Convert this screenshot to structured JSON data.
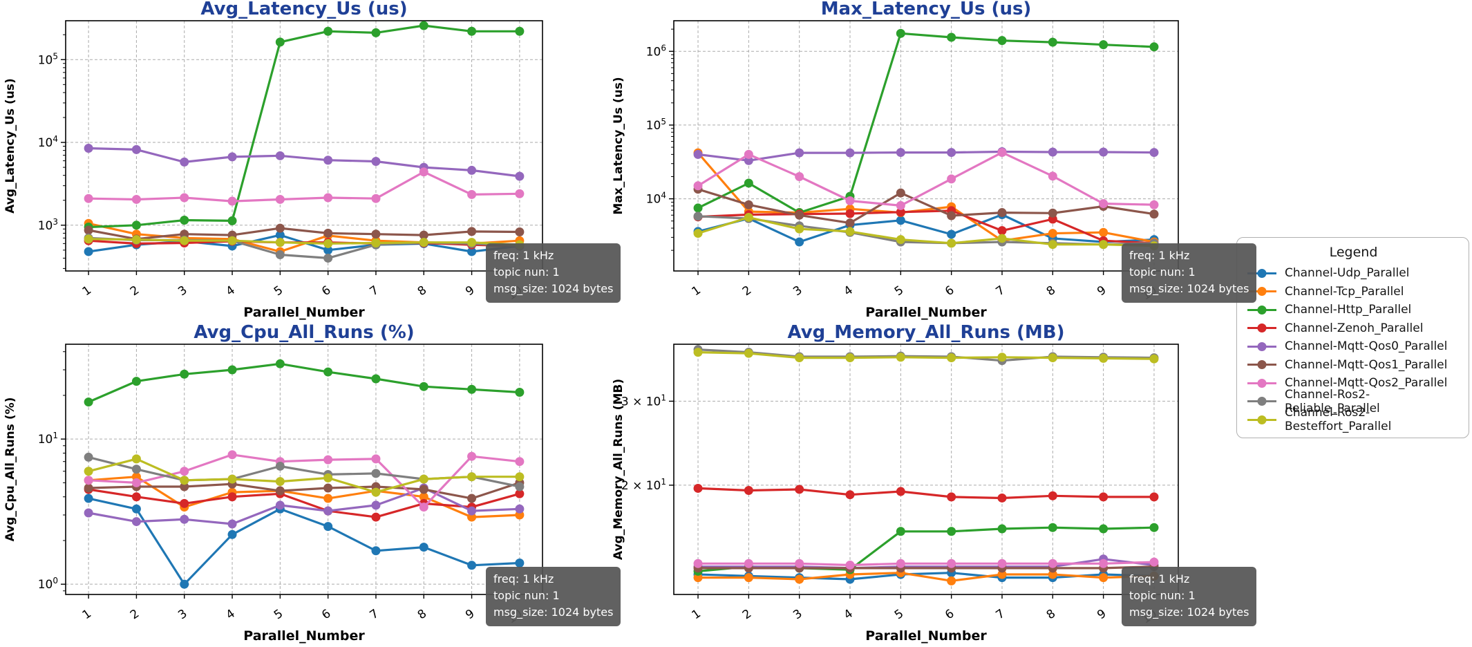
{
  "figure": {
    "background": "#ffffff",
    "title_color": "#1f4096",
    "axis_color": "#000000",
    "grid_color": "#aaaaaa",
    "annotation": {
      "line1": "freq: 1 kHz",
      "line2": "topic nun: 1",
      "line3": "msg_size: 1024 bytes",
      "bg_color": "#555555",
      "text_color": "#ffffff"
    }
  },
  "legend": {
    "title": "Legend",
    "items": [
      {
        "label": "Channel-Udp_Parallel",
        "color": "#1f77b4"
      },
      {
        "label": "Channel-Tcp_Parallel",
        "color": "#ff7f0e"
      },
      {
        "label": "Channel-Http_Parallel",
        "color": "#2ca02c"
      },
      {
        "label": "Channel-Zenoh_Parallel",
        "color": "#d62728"
      },
      {
        "label": "Channel-Mqtt-Qos0_Parallel",
        "color": "#9467bd"
      },
      {
        "label": "Channel-Mqtt-Qos1_Parallel",
        "color": "#8c564b"
      },
      {
        "label": "Channel-Mqtt-Qos2_Parallel",
        "color": "#e377c2"
      },
      {
        "label": "Channel-Ros2-Reliable_Parallel",
        "color": "#7f7f7f"
      },
      {
        "label": "Channel-Ros2-Besteffort_Parallel",
        "color": "#bcbd22"
      }
    ]
  },
  "chart_data": [
    {
      "type": "line",
      "title": "Avg_Latency_Us  (us)",
      "ylabel": "Avg_Latency_Us (us)",
      "xlabel": "Parallel_Number",
      "log_y": true,
      "grid": true,
      "legend_position": "outside-right",
      "x": [
        1,
        2,
        3,
        4,
        5,
        6,
        7,
        8,
        9,
        10
      ],
      "ylim": [
        280,
        295000
      ],
      "yticks": [
        {
          "value": 1000,
          "base": "",
          "exp": "3"
        },
        {
          "value": 10000,
          "base": "",
          "exp": "4"
        },
        {
          "value": 100000,
          "base": "",
          "exp": "5"
        }
      ],
      "series": [
        {
          "name": "Channel-Udp_Parallel",
          "color": "#1f77b4",
          "values": [
            480,
            580,
            640,
            560,
            760,
            500,
            580,
            600,
            480,
            560
          ]
        },
        {
          "name": "Channel-Tcp_Parallel",
          "color": "#ff7f0e",
          "values": [
            1050,
            780,
            700,
            680,
            480,
            750,
            650,
            620,
            600,
            650
          ]
        },
        {
          "name": "Channel-Http_Parallel",
          "color": "#2ca02c",
          "values": [
            950,
            1000,
            1150,
            1130,
            163000,
            220000,
            211000,
            258000,
            220000,
            220000
          ]
        },
        {
          "name": "Channel-Zenoh_Parallel",
          "color": "#d62728",
          "values": [
            650,
            600,
            610,
            640,
            620,
            620,
            600,
            610,
            580,
            560
          ]
        },
        {
          "name": "Channel-Mqtt-Qos0_Parallel",
          "color": "#9467bd",
          "values": [
            8500,
            8200,
            5800,
            6700,
            6900,
            6100,
            5900,
            5000,
            4600,
            3900
          ]
        },
        {
          "name": "Channel-Mqtt-Qos1_Parallel",
          "color": "#8c564b",
          "values": [
            870,
            680,
            780,
            760,
            920,
            800,
            780,
            760,
            840,
            830
          ]
        },
        {
          "name": "Channel-Mqtt-Qos2_Parallel",
          "color": "#e377c2",
          "values": [
            2100,
            2050,
            2150,
            1950,
            2050,
            2150,
            2100,
            4400,
            2350,
            2400
          ]
        },
        {
          "name": "Channel-Ros2-Reliable_Parallel",
          "color": "#7f7f7f",
          "values": [
            700,
            660,
            660,
            650,
            440,
            400,
            580,
            620,
            600,
            560
          ]
        },
        {
          "name": "Channel-Ros2-Besteffort_Parallel",
          "color": "#bcbd22",
          "values": [
            680,
            670,
            650,
            650,
            620,
            600,
            610,
            620,
            620,
            580
          ]
        }
      ]
    },
    {
      "type": "line",
      "title": "Max_Latency_Us  (us)",
      "ylabel": "Max_Latency_Us (us)",
      "xlabel": "Parallel_Number",
      "log_y": true,
      "grid": true,
      "legend_position": "outside-right",
      "x": [
        1,
        2,
        3,
        4,
        5,
        6,
        7,
        8,
        9,
        10
      ],
      "ylim": [
        1050,
        2600000
      ],
      "yticks": [
        {
          "value": 10000,
          "base": "",
          "exp": "4"
        },
        {
          "value": 100000,
          "base": "",
          "exp": "5"
        },
        {
          "value": 1000000,
          "base": "",
          "exp": "6"
        }
      ],
      "series": [
        {
          "name": "Channel-Udp_Parallel",
          "color": "#1f77b4",
          "values": [
            3600,
            5400,
            2600,
            4400,
            5100,
            3300,
            6100,
            2900,
            2600,
            2800
          ]
        },
        {
          "name": "Channel-Tcp_Parallel",
          "color": "#ff7f0e",
          "values": [
            42000,
            6700,
            6500,
            7300,
            6500,
            7800,
            2700,
            3400,
            3500,
            2600
          ]
        },
        {
          "name": "Channel-Http_Parallel",
          "color": "#2ca02c",
          "values": [
            7500,
            16300,
            6500,
            10800,
            1750000,
            1550000,
            1400000,
            1330000,
            1230000,
            1150000
          ]
        },
        {
          "name": "Channel-Zenoh_Parallel",
          "color": "#d62728",
          "values": [
            5700,
            6100,
            6200,
            6300,
            6600,
            6900,
            3700,
            5300,
            2700,
            2500
          ]
        },
        {
          "name": "Channel-Mqtt-Qos0_Parallel",
          "color": "#9467bd",
          "values": [
            40000,
            33000,
            42000,
            42000,
            42500,
            42500,
            43500,
            43000,
            43000,
            42500
          ]
        },
        {
          "name": "Channel-Mqtt-Qos1_Parallel",
          "color": "#8c564b",
          "values": [
            13500,
            8300,
            6000,
            4700,
            12000,
            5900,
            6500,
            6400,
            7900,
            6200
          ]
        },
        {
          "name": "Channel-Mqtt-Qos2_Parallel",
          "color": "#e377c2",
          "values": [
            15000,
            40000,
            20000,
            9400,
            8100,
            18600,
            42500,
            20300,
            8600,
            8300
          ]
        },
        {
          "name": "Channel-Ros2-Reliable_Parallel",
          "color": "#7f7f7f",
          "values": [
            5800,
            5400,
            4300,
            3500,
            2600,
            2500,
            2600,
            2500,
            2400,
            2500
          ]
        },
        {
          "name": "Channel-Ros2-Besteffort_Parallel",
          "color": "#bcbd22",
          "values": [
            3400,
            5600,
            3900,
            3600,
            2800,
            2500,
            2900,
            2400,
            2400,
            2300
          ]
        }
      ]
    },
    {
      "type": "line",
      "title": "Avg_Cpu_All_Runs  (%)",
      "ylabel": "Avg_Cpu_All_Runs (%)",
      "xlabel": "Parallel_Number",
      "log_y": true,
      "grid": true,
      "legend_position": "outside-right",
      "x": [
        1,
        2,
        3,
        4,
        5,
        6,
        7,
        8,
        9,
        10
      ],
      "ylim": [
        0.85,
        45
      ],
      "yticks": [
        {
          "value": 1,
          "base": "",
          "exp": "0"
        },
        {
          "value": 10,
          "base": "",
          "exp": "1"
        }
      ],
      "series": [
        {
          "name": "Channel-Udp_Parallel",
          "color": "#1f77b4",
          "values": [
            3.9,
            3.3,
            1.0,
            2.2,
            3.3,
            2.5,
            1.7,
            1.8,
            1.35,
            1.4
          ]
        },
        {
          "name": "Channel-Tcp_Parallel",
          "color": "#ff7f0e",
          "values": [
            5.2,
            5.5,
            3.4,
            4.3,
            4.4,
            3.9,
            4.4,
            4.0,
            2.9,
            3.0
          ]
        },
        {
          "name": "Channel-Http_Parallel",
          "color": "#2ca02c",
          "values": [
            18,
            25,
            28,
            30,
            33,
            29,
            26,
            23,
            22,
            21
          ]
        },
        {
          "name": "Channel-Zenoh_Parallel",
          "color": "#d62728",
          "values": [
            4.5,
            4.0,
            3.6,
            4.0,
            4.2,
            3.2,
            2.9,
            3.6,
            3.4,
            4.2
          ]
        },
        {
          "name": "Channel-Mqtt-Qos0_Parallel",
          "color": "#9467bd",
          "values": [
            3.1,
            2.7,
            2.8,
            2.6,
            3.5,
            3.2,
            3.5,
            4.6,
            3.2,
            3.3
          ]
        },
        {
          "name": "Channel-Mqtt-Qos1_Parallel",
          "color": "#8c564b",
          "values": [
            4.6,
            4.7,
            4.7,
            4.9,
            4.4,
            4.6,
            4.7,
            4.5,
            3.9,
            5.0
          ]
        },
        {
          "name": "Channel-Mqtt-Qos2_Parallel",
          "color": "#e377c2",
          "values": [
            5.2,
            5.0,
            6.0,
            7.8,
            7.0,
            7.2,
            7.3,
            3.4,
            7.6,
            7.0
          ]
        },
        {
          "name": "Channel-Ros2-Reliable_Parallel",
          "color": "#7f7f7f",
          "values": [
            7.5,
            6.2,
            5.2,
            5.3,
            6.5,
            5.7,
            5.8,
            5.3,
            5.5,
            4.7
          ]
        },
        {
          "name": "Channel-Ros2-Besteffort_Parallel",
          "color": "#bcbd22",
          "values": [
            6.0,
            7.3,
            5.2,
            5.3,
            5.1,
            5.4,
            4.3,
            5.3,
            5.5,
            5.5
          ]
        }
      ]
    },
    {
      "type": "line",
      "title": "Avg_Memory_All_Runs  (MB)",
      "ylabel": "Avg_Memory_All_Runs (MB)",
      "xlabel": "Parallel_Number",
      "log_y": true,
      "grid": true,
      "legend_position": "outside-right",
      "x": [
        1,
        2,
        3,
        4,
        5,
        6,
        7,
        8,
        9,
        10
      ],
      "ylim": [
        11.8,
        39.5
      ],
      "yticks": [
        {
          "value": 20,
          "base": "2",
          "exp": "1"
        },
        {
          "value": 30,
          "base": "3",
          "exp": "1"
        }
      ],
      "series": [
        {
          "name": "Channel-Udp_Parallel",
          "color": "#1f77b4",
          "values": [
            13.0,
            12.9,
            12.8,
            12.7,
            13.0,
            13.1,
            12.8,
            12.8,
            13.0,
            12.9
          ]
        },
        {
          "name": "Channel-Tcp_Parallel",
          "color": "#ff7f0e",
          "values": [
            12.8,
            12.8,
            12.7,
            13.0,
            13.1,
            12.6,
            13.0,
            13.0,
            12.8,
            12.9
          ]
        },
        {
          "name": "Channel-Http_Parallel",
          "color": "#2ca02c",
          "values": [
            13.2,
            13.5,
            13.4,
            13.3,
            16.0,
            16.0,
            16.2,
            16.3,
            16.2,
            16.3
          ]
        },
        {
          "name": "Channel-Zenoh_Parallel",
          "color": "#d62728",
          "values": [
            19.7,
            19.5,
            19.6,
            19.1,
            19.4,
            18.9,
            18.8,
            19.0,
            18.9,
            18.9
          ]
        },
        {
          "name": "Channel-Mqtt-Qos0_Parallel",
          "color": "#9467bd",
          "values": [
            13.5,
            13.5,
            13.5,
            13.4,
            13.5,
            13.5,
            13.5,
            13.5,
            14.0,
            13.6
          ]
        },
        {
          "name": "Channel-Mqtt-Qos1_Parallel",
          "color": "#8c564b",
          "values": [
            13.4,
            13.4,
            13.4,
            13.4,
            13.4,
            13.4,
            13.4,
            13.4,
            13.4,
            13.5
          ]
        },
        {
          "name": "Channel-Mqtt-Qos2_Parallel",
          "color": "#e377c2",
          "values": [
            13.7,
            13.7,
            13.7,
            13.6,
            13.7,
            13.7,
            13.7,
            13.7,
            13.7,
            13.8
          ]
        },
        {
          "name": "Channel-Ros2-Reliable_Parallel",
          "color": "#7f7f7f",
          "values": [
            38.5,
            38.0,
            37.2,
            37.2,
            37.3,
            37.2,
            36.5,
            37.2,
            37.1,
            37.0
          ]
        },
        {
          "name": "Channel-Ros2-Besteffort_Parallel",
          "color": "#bcbd22",
          "values": [
            38.0,
            37.8,
            37.0,
            37.0,
            37.1,
            37.0,
            37.1,
            37.0,
            36.9,
            36.8
          ]
        }
      ]
    }
  ]
}
